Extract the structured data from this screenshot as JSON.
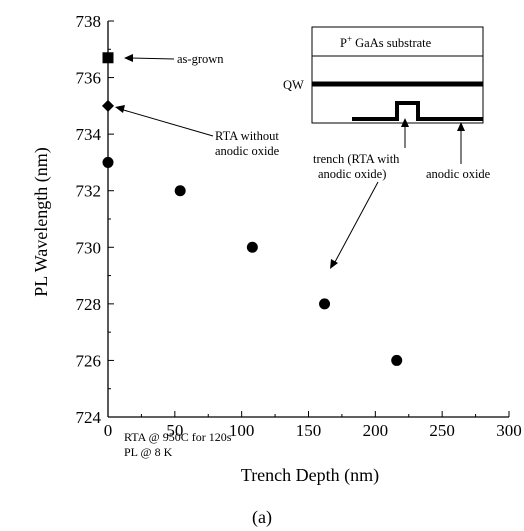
{
  "chart_data": {
    "type": "scatter",
    "xlabel": "Trench Depth (nm)",
    "ylabel": "PL Wavelength (nm)",
    "xlim": [
      0,
      300
    ],
    "ylim": [
      724,
      738
    ],
    "xticks": [
      "0",
      "50",
      "100",
      "150",
      "200",
      "250",
      "300"
    ],
    "yticks": [
      "724",
      "726",
      "728",
      "730",
      "732",
      "734",
      "736",
      "738"
    ],
    "grid": false,
    "caption": "(a)",
    "series": [
      {
        "marker": "square",
        "points": [
          {
            "x": 0,
            "y": 736.7
          }
        ]
      },
      {
        "marker": "diamond",
        "points": [
          {
            "x": 0,
            "y": 735.0
          }
        ]
      },
      {
        "marker": "circle",
        "points": [
          {
            "x": 0,
            "y": 733.0
          },
          {
            "x": 54,
            "y": 732.0
          },
          {
            "x": 108,
            "y": 730.0
          },
          {
            "x": 162,
            "y": 728.0
          },
          {
            "x": 216,
            "y": 726.0
          }
        ]
      }
    ],
    "annotations": {
      "as_grown": "as-grown",
      "rta_line1": "RTA without",
      "rta_line2": "anodic oxide",
      "trench_line1": "trench (RTA with",
      "trench_line2": "anodic oxide)",
      "anodic_oxide": "anodic oxide",
      "note_line1": "RTA @ 950C for 120s",
      "note_line2": "PL @ 8 K"
    },
    "inset": {
      "substrate_prefix": "P",
      "substrate_sup": "+",
      "substrate_rest": " GaAs substrate",
      "qw_label": "QW"
    }
  }
}
